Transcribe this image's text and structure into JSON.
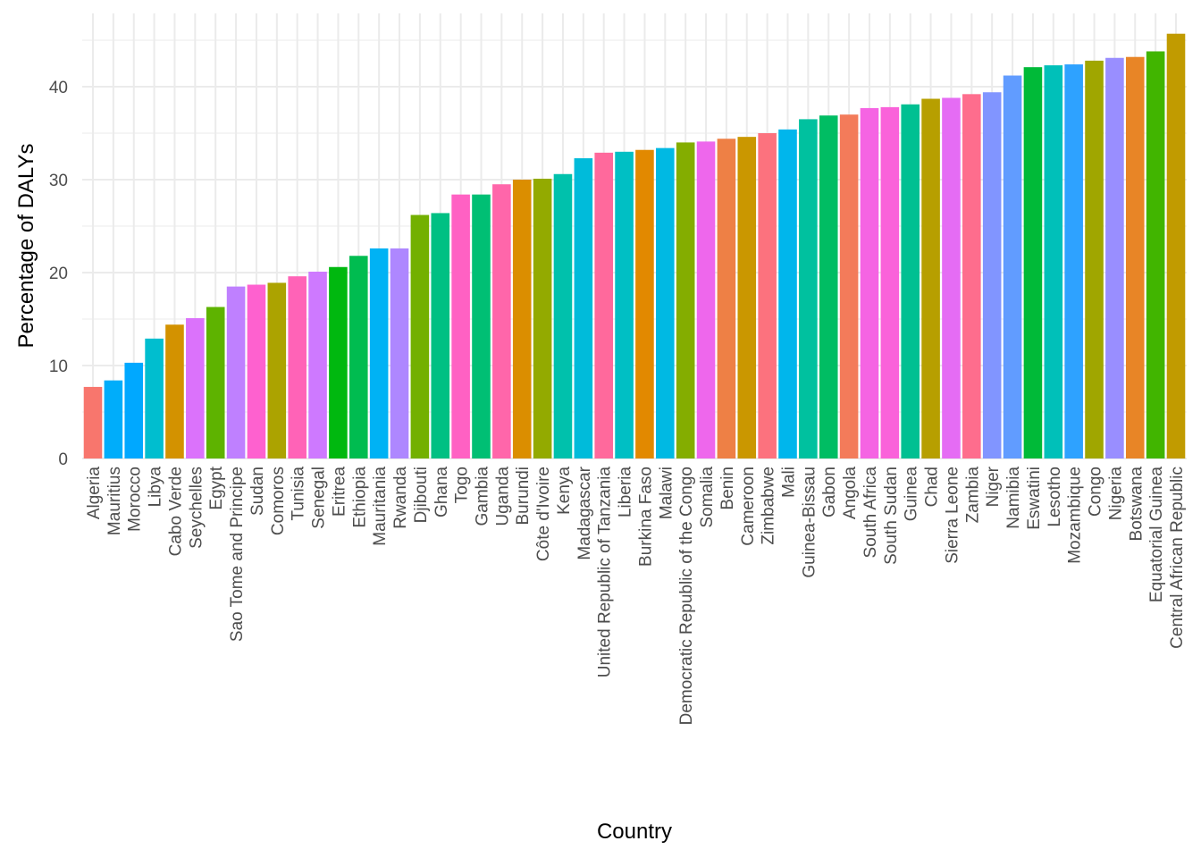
{
  "chart_data": {
    "type": "bar",
    "title": "",
    "xlabel": "Country",
    "ylabel": "Percentage of DALYs",
    "ylim": [
      0,
      46
    ],
    "yticks": [
      0,
      10,
      20,
      30,
      40
    ],
    "grid": true,
    "legend": "none",
    "fill_palette": "default hue palette by country (alphabetical)",
    "categories": [
      "Algeria",
      "Mauritius",
      "Morocco",
      "Libya",
      "Cabo Verde",
      "Seychelles",
      "Egypt",
      "Sao Tome and Principe",
      "Sudan",
      "Comoros",
      "Tunisia",
      "Senegal",
      "Eritrea",
      "Ethiopia",
      "Mauritania",
      "Rwanda",
      "Djibouti",
      "Ghana",
      "Togo",
      "Gambia",
      "Uganda",
      "Burundi",
      "Côte d'Ivoire",
      "Kenya",
      "Madagascar",
      "United Republic of Tanzania",
      "Liberia",
      "Burkina Faso",
      "Malawi",
      "Democratic Republic of the Congo",
      "Somalia",
      "Benin",
      "Cameroon",
      "Zimbabwe",
      "Mali",
      "Guinea-Bissau",
      "Gabon",
      "Angola",
      "South Africa",
      "South Sudan",
      "Guinea",
      "Chad",
      "Sierra Leone",
      "Zambia",
      "Niger",
      "Namibia",
      "Eswatini",
      "Lesotho",
      "Mozambique",
      "Congo",
      "Nigeria",
      "Botswana",
      "Equatorial Guinea",
      "Central African Republic"
    ],
    "values": [
      7.7,
      8.4,
      10.3,
      12.9,
      14.4,
      15.1,
      16.3,
      18.5,
      18.7,
      18.9,
      19.6,
      20.1,
      20.6,
      21.8,
      22.6,
      22.6,
      26.2,
      26.4,
      28.4,
      28.4,
      29.5,
      30.0,
      30.1,
      30.6,
      32.3,
      32.9,
      33.0,
      33.2,
      33.4,
      34.0,
      34.1,
      34.4,
      34.6,
      35.0,
      35.4,
      36.5,
      36.9,
      37.0,
      37.7,
      37.8,
      38.1,
      38.7,
      38.8,
      39.2,
      39.4,
      41.2,
      42.1,
      42.3,
      42.4,
      42.8,
      43.1,
      43.2,
      43.8,
      45.7
    ]
  }
}
